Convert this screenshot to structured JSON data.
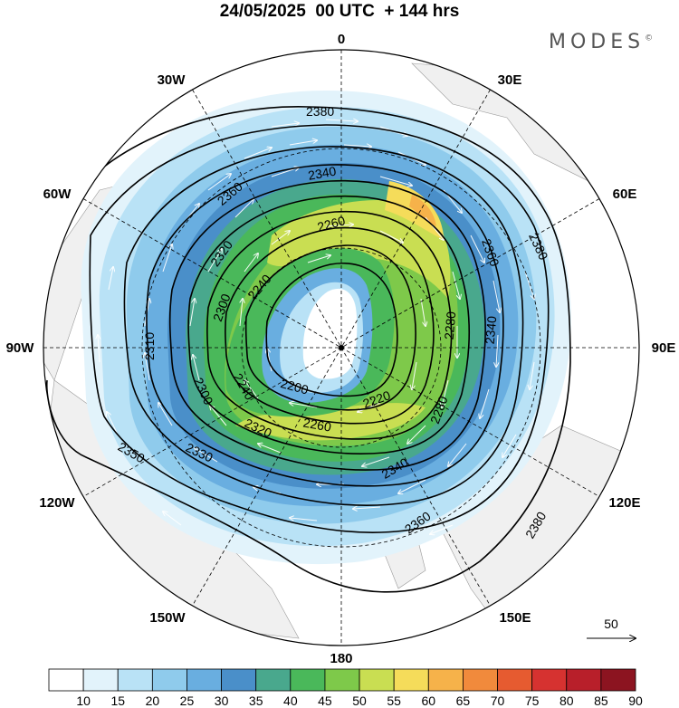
{
  "title": "24/05/2025  00 UTC  + 144 hrs",
  "brand": "MODES",
  "brand_mark": "©",
  "longitude_labels": {
    "n": "0",
    "nne": "30E",
    "ene": "60E",
    "e": "90E",
    "ese": "120E",
    "sse": "150E",
    "s": "180",
    "ssw": "150W",
    "wsw": "120W",
    "w": "90W",
    "wnw": "60W",
    "nnw": "30W"
  },
  "contour_labels": [
    "2380",
    "2360",
    "2340",
    "2320",
    "2300",
    "2280",
    "2260",
    "2240",
    "2220",
    "2200",
    "2240",
    "2260",
    "2280",
    "2300",
    "2320",
    "2340",
    "2360",
    "2380",
    "2360",
    "2340",
    "2310",
    "2330",
    "2350",
    "2380"
  ],
  "vector_reference": {
    "value": "50"
  },
  "colorbar": {
    "labels": [
      "10",
      "15",
      "20",
      "25",
      "30",
      "35",
      "40",
      "45",
      "50",
      "55",
      "60",
      "65",
      "70",
      "75",
      "80",
      "85",
      "90"
    ],
    "colors": [
      "#ffffff",
      "#e2f3fb",
      "#b9e2f6",
      "#8fcbec",
      "#69aee0",
      "#4a8fc9",
      "#49a88d",
      "#4ab85a",
      "#7ec94a",
      "#c9de52",
      "#f5dc5a",
      "#f6b24a",
      "#f18a3c",
      "#e65b30",
      "#d63230",
      "#b81f2a",
      "#8c1420"
    ]
  }
}
